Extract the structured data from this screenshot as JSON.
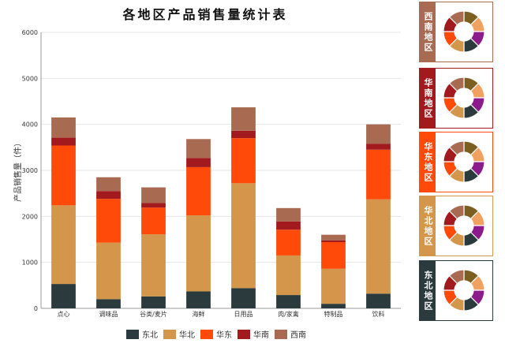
{
  "chart_data": {
    "type": "bar",
    "stacked": true,
    "title": "各地区产品销售量统计表",
    "ylabel": "产品销售量（件）",
    "xlabel": "",
    "ylim": [
      0,
      6000
    ],
    "yticks": [
      0,
      1000,
      2000,
      3000,
      4000,
      5000,
      6000
    ],
    "grid": true,
    "legend_position": "bottom",
    "categories": [
      "点心",
      "调味品",
      "谷类/麦片",
      "海鲜",
      "日用品",
      "肉/家禽",
      "特制品",
      "饮料"
    ],
    "series": [
      {
        "name": "东北",
        "color": "#2b3a3c",
        "values": [
          530,
          200,
          260,
          370,
          440,
          290,
          100,
          320
        ]
      },
      {
        "name": "华北",
        "color": "#d4964a",
        "values": [
          1710,
          1230,
          1350,
          1650,
          2280,
          860,
          760,
          2050
        ]
      },
      {
        "name": "华东",
        "color": "#ff4a0a",
        "values": [
          1300,
          950,
          580,
          1050,
          980,
          560,
          580,
          1080
        ]
      },
      {
        "name": "华南",
        "color": "#a31a1e",
        "values": [
          170,
          170,
          100,
          200,
          160,
          180,
          40,
          130
        ]
      },
      {
        "name": "西南",
        "color": "#a86a50",
        "values": [
          440,
          300,
          340,
          410,
          510,
          290,
          120,
          420
        ]
      }
    ]
  },
  "side_panels": [
    {
      "label": "西南地区",
      "color": "#a86a50",
      "values": [
        1,
        1,
        1,
        1,
        1,
        1,
        1,
        1
      ]
    },
    {
      "label": "华南地区",
      "color": "#a31a1e",
      "values": [
        1,
        1,
        1,
        1,
        1,
        1,
        1,
        1
      ]
    },
    {
      "label": "华东地区",
      "color": "#ff4a0a",
      "values": [
        1,
        1,
        1,
        1,
        1,
        1,
        1,
        1
      ]
    },
    {
      "label": "华北地区",
      "color": "#d4964a",
      "values": [
        1,
        1,
        1,
        1,
        1,
        1,
        1,
        1
      ]
    },
    {
      "label": "东北地区",
      "color": "#2b3a3c",
      "values": [
        1,
        1,
        1,
        1,
        1,
        1,
        1,
        1
      ]
    }
  ],
  "donut_colors": [
    "#7b5e20",
    "#f0a060",
    "#8b1a8b",
    "#2b3a3c",
    "#d4964a",
    "#ff4a0a",
    "#a31a1e",
    "#a86a50"
  ]
}
